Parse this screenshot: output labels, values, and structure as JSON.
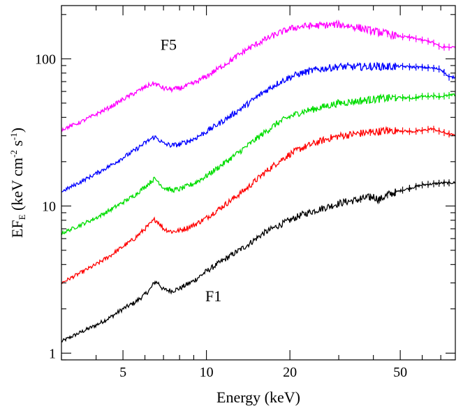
{
  "chart_data": {
    "type": "line",
    "xlabel": "Energy (keV)",
    "ylabel": {
      "main": "EF",
      "sub": "E",
      "open": " (keV cm",
      "sup1": "-2",
      "mid": " s",
      "sup2": "-1",
      "close": ")"
    },
    "x_scale": "log",
    "y_scale": "log",
    "xlim": [
      3.0,
      79.0
    ],
    "ylim": [
      0.9,
      230
    ],
    "x_ticks": [
      5,
      10,
      20,
      50
    ],
    "y_ticks": [
      1,
      10,
      100
    ],
    "x_tick_labels": [
      "5",
      "10",
      "20",
      "50"
    ],
    "y_tick_labels": [
      "1",
      "10",
      "100"
    ],
    "grid": false,
    "annotations": [
      {
        "text": "F5",
        "x": 7.3,
        "y": 115
      },
      {
        "text": "F1",
        "x": 10.6,
        "y": 2.25
      }
    ],
    "series": [
      {
        "color": "#000000",
        "x": [
          3.0,
          3.5,
          4.0,
          4.5,
          5.0,
          5.5,
          6.0,
          6.3,
          6.5,
          6.7,
          7.0,
          7.5,
          8.0,
          9.0,
          10.0,
          12.0,
          14.0,
          16.0,
          18.0,
          20.0,
          22.0,
          25.0,
          28.0,
          30.0,
          32.0,
          35.0,
          40.0,
          42.0,
          45.0,
          50.0,
          55.0,
          60.0,
          70.0,
          79.0
        ],
        "y": [
          1.2,
          1.38,
          1.55,
          1.75,
          2.0,
          2.2,
          2.5,
          2.75,
          3.05,
          3.0,
          2.7,
          2.65,
          2.75,
          3.1,
          3.6,
          4.5,
          5.4,
          6.5,
          7.3,
          8.0,
          8.7,
          9.4,
          10.0,
          10.4,
          10.7,
          11.0,
          11.6,
          11.0,
          11.9,
          12.7,
          13.3,
          13.9,
          14.3,
          14.4
        ]
      },
      {
        "color": "#ff0000",
        "x": [
          3.0,
          3.5,
          4.0,
          4.5,
          5.0,
          5.5,
          6.0,
          6.3,
          6.5,
          6.7,
          7.0,
          7.5,
          8.0,
          9.0,
          10.0,
          12.0,
          14.0,
          16.0,
          18.0,
          20.0,
          22.0,
          25.0,
          28.0,
          30.0,
          35.0,
          40.0,
          45.0,
          50.0,
          55.0,
          60.0,
          65.0,
          70.0,
          79.0
        ],
        "y": [
          3.0,
          3.5,
          4.0,
          4.6,
          5.3,
          6.0,
          7.0,
          7.6,
          8.1,
          7.8,
          7.0,
          6.7,
          6.8,
          7.4,
          8.3,
          10.6,
          13.2,
          16.5,
          19.7,
          22.5,
          24.7,
          27.0,
          29.0,
          29.8,
          31.0,
          31.8,
          32.5,
          32.5,
          32.0,
          32.5,
          33.5,
          32.0,
          30.0
        ]
      },
      {
        "color": "#00dd00",
        "x": [
          3.0,
          3.5,
          4.0,
          4.5,
          5.0,
          5.5,
          6.0,
          6.3,
          6.5,
          6.7,
          7.0,
          7.5,
          8.0,
          9.0,
          10.0,
          12.0,
          14.0,
          16.0,
          18.0,
          20.0,
          22.0,
          25.0,
          28.0,
          30.0,
          35.0,
          40.0,
          45.0,
          50.0,
          55.0,
          60.0,
          65.0,
          70.0,
          79.0
        ],
        "y": [
          6.5,
          7.4,
          8.3,
          9.4,
          10.6,
          11.8,
          13.5,
          14.6,
          15.3,
          14.7,
          13.3,
          12.8,
          13.0,
          14.2,
          16.0,
          20.5,
          25.5,
          31.0,
          36.5,
          40.5,
          43.5,
          46.0,
          48.5,
          50.0,
          51.5,
          53.0,
          54.0,
          54.5,
          54.0,
          55.5,
          56.0,
          55.5,
          57.0
        ]
      },
      {
        "color": "#0000ff",
        "x": [
          3.0,
          3.5,
          4.0,
          4.5,
          5.0,
          5.5,
          6.0,
          6.3,
          6.5,
          6.7,
          7.0,
          7.5,
          8.0,
          9.0,
          10.0,
          12.0,
          14.0,
          16.0,
          18.0,
          20.0,
          22.0,
          25.0,
          28.0,
          30.0,
          35.0,
          40.0,
          45.0,
          50.0,
          55.0,
          60.0,
          65.0,
          70.0,
          75.0,
          79.0
        ],
        "y": [
          12.5,
          14.5,
          16.6,
          18.8,
          21.3,
          23.8,
          26.8,
          28.5,
          29.5,
          28.5,
          26.5,
          25.8,
          26.2,
          28.5,
          32.0,
          40.0,
          49.0,
          59.0,
          68.0,
          75.0,
          80.0,
          84.5,
          87.0,
          88.5,
          88.0,
          89.0,
          88.5,
          89.0,
          88.0,
          87.5,
          86.5,
          85.0,
          75.0,
          75.0
        ]
      },
      {
        "color": "#ff00ff",
        "x": [
          3.0,
          3.5,
          4.0,
          4.5,
          5.0,
          5.5,
          6.0,
          6.3,
          6.5,
          6.7,
          7.0,
          7.5,
          8.0,
          9.0,
          10.0,
          12.0,
          14.0,
          16.0,
          18.0,
          20.0,
          22.0,
          25.0,
          28.0,
          30.0,
          35.0,
          40.0,
          45.0,
          50.0,
          55.0,
          60.0,
          65.0,
          70.0,
          79.0
        ],
        "y": [
          33.0,
          37.0,
          42.0,
          47.0,
          53.0,
          58.5,
          64.0,
          67.0,
          68.0,
          66.0,
          63.0,
          62.0,
          63.0,
          68.0,
          76.0,
          95.0,
          116.0,
          133.0,
          148.0,
          160.0,
          166.0,
          168.0,
          170.0,
          171.0,
          164.0,
          154.0,
          148.0,
          142.0,
          139.0,
          134.0,
          130.0,
          120.0,
          120.0
        ]
      }
    ]
  }
}
